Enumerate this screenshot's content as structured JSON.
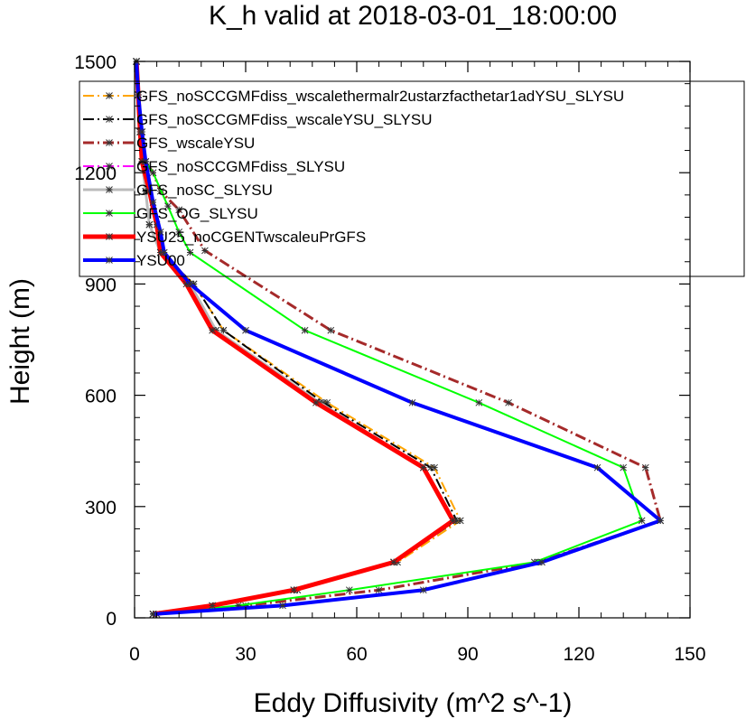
{
  "chart_data": {
    "type": "line",
    "title": "K_h valid at 2018-03-01_18:00:00",
    "xlabel": "Eddy Diffusivity (m^2 s^-1)",
    "ylabel": "Height (m)",
    "xlim": [
      0,
      150
    ],
    "ylim": [
      0,
      1500
    ],
    "xticks": [
      0,
      30,
      60,
      90,
      120,
      150
    ],
    "yticks": [
      0,
      300,
      600,
      900,
      1200,
      1500
    ],
    "legend_position": "top",
    "series": [
      {
        "name": "GFS_noSCCGMFdiss_wscalethermalr2ustarzfacthetar1adYSU_SLYSU",
        "color": "#ffa500",
        "style": "dashed",
        "marker": true,
        "width": 2,
        "x": [
          5,
          22,
          44,
          71,
          88,
          81,
          52,
          24,
          16,
          7,
          4,
          3,
          2,
          1.5,
          1,
          0.5
        ],
        "y": [
          10,
          33,
          75,
          150,
          262,
          405,
          580,
          775,
          900,
          985,
          1060,
          1150,
          1230,
          1310,
          1410,
          1500
        ]
      },
      {
        "name": "GFS_noSCCGMFdiss_wscaleYSU_SLYSU",
        "color": "#000000",
        "style": "dashed",
        "marker": true,
        "width": 2,
        "x": [
          5,
          22,
          44,
          70,
          87,
          80,
          51,
          24,
          16,
          7,
          4,
          3,
          2,
          1.5,
          1,
          0.5
        ],
        "y": [
          10,
          33,
          75,
          150,
          262,
          405,
          580,
          775,
          900,
          985,
          1060,
          1150,
          1230,
          1310,
          1410,
          1500
        ]
      },
      {
        "name": "GFS_wscaleYSU",
        "color": "#a52a2a",
        "style": "dashed",
        "marker": true,
        "width": 3,
        "x": [
          6,
          30,
          66,
          109,
          142,
          138,
          101,
          53,
          19,
          12,
          7,
          5,
          3,
          2,
          1,
          0.5
        ],
        "y": [
          10,
          33,
          75,
          150,
          262,
          405,
          580,
          775,
          990,
          1100,
          1150,
          1200,
          1230,
          1310,
          1410,
          1500
        ]
      },
      {
        "name": "GFS_noSCCGMFdiss_SLYSU",
        "color": "#ff00ff",
        "style": "dashed",
        "marker": true,
        "width": 2,
        "x": [
          5,
          21,
          43,
          70,
          86,
          78,
          50,
          22,
          15,
          7,
          4,
          3,
          2,
          1.5,
          1,
          0.5
        ],
        "y": [
          10,
          33,
          75,
          150,
          262,
          405,
          580,
          775,
          900,
          985,
          1060,
          1150,
          1230,
          1310,
          1410,
          1500
        ]
      },
      {
        "name": "GFS_noSC_SLYSU",
        "color": "#bbbbbb",
        "style": "solid",
        "marker": true,
        "width": 3,
        "x": [
          5,
          21,
          43,
          70,
          86,
          78,
          50,
          22,
          15,
          7,
          4,
          3,
          2,
          1.5,
          1,
          0.5
        ],
        "y": [
          10,
          33,
          75,
          150,
          262,
          405,
          580,
          775,
          900,
          985,
          1060,
          1150,
          1230,
          1310,
          1410,
          1500
        ]
      },
      {
        "name": "GFS_OG_SLYSU",
        "color": "#00ff00",
        "style": "solid",
        "marker": true,
        "width": 2,
        "x": [
          5,
          28,
          58,
          108,
          137,
          132,
          93,
          46,
          15,
          12,
          9,
          5,
          3,
          2,
          1,
          0.5
        ],
        "y": [
          10,
          33,
          75,
          150,
          262,
          405,
          580,
          775,
          985,
          1040,
          1110,
          1200,
          1230,
          1310,
          1410,
          1500
        ]
      },
      {
        "name": "YSU25_noCGENTwscaleuPrGFS",
        "color": "#ff0000",
        "style": "solid",
        "marker": true,
        "width": 5,
        "x": [
          5,
          21,
          43,
          70,
          86,
          78,
          49,
          21,
          14,
          7,
          6,
          4,
          2,
          1.5,
          1,
          0.5
        ],
        "y": [
          10,
          33,
          75,
          150,
          262,
          405,
          580,
          775,
          900,
          985,
          1060,
          1150,
          1230,
          1310,
          1410,
          1500
        ]
      },
      {
        "name": "YSU00",
        "color": "#0000ff",
        "style": "solid",
        "marker": true,
        "width": 4,
        "x": [
          5,
          40,
          78,
          110,
          142,
          125,
          75,
          30,
          15,
          8,
          7,
          5,
          3,
          2,
          1,
          0.5
        ],
        "y": [
          10,
          33,
          75,
          150,
          262,
          405,
          580,
          775,
          900,
          985,
          1040,
          1120,
          1230,
          1310,
          1410,
          1500
        ]
      }
    ]
  }
}
